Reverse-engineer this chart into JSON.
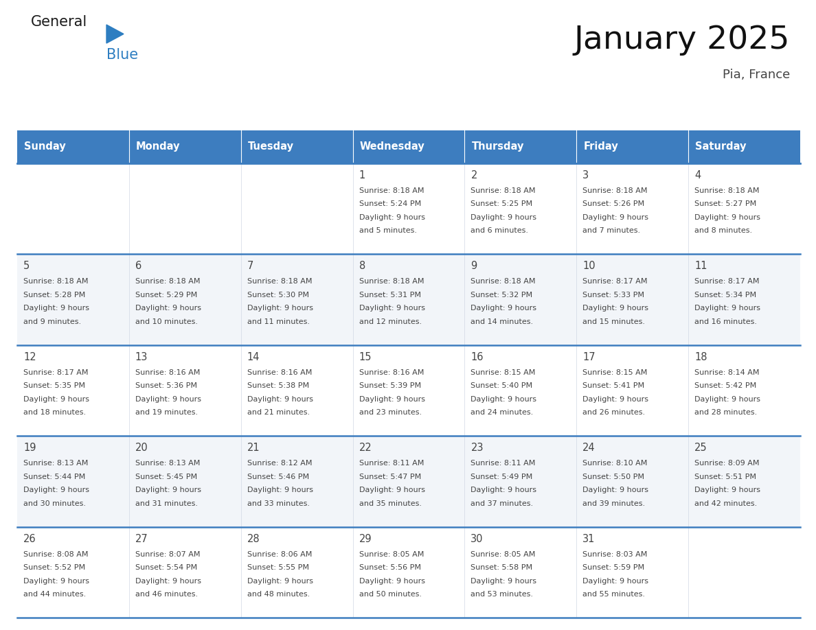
{
  "title": "January 2025",
  "subtitle": "Pia, France",
  "days_of_week": [
    "Sunday",
    "Monday",
    "Tuesday",
    "Wednesday",
    "Thursday",
    "Friday",
    "Saturday"
  ],
  "header_bg": "#3D7DBF",
  "header_text_color": "#FFFFFF",
  "border_color": "#3D7DBF",
  "text_color": "#444444",
  "title_color": "#111111",
  "subtitle_color": "#444444",
  "cell_bg_odd": "#FFFFFF",
  "cell_bg_even": "#F2F5F9",
  "logo_general_color": "#1A1A1A",
  "logo_blue_color": "#2E7EC1",
  "calendar": [
    [
      null,
      null,
      null,
      {
        "day": 1,
        "sunrise": "8:18 AM",
        "sunset": "5:24 PM",
        "daylight": "9 hours",
        "dl_min": "5 minutes"
      },
      {
        "day": 2,
        "sunrise": "8:18 AM",
        "sunset": "5:25 PM",
        "daylight": "9 hours",
        "dl_min": "6 minutes"
      },
      {
        "day": 3,
        "sunrise": "8:18 AM",
        "sunset": "5:26 PM",
        "daylight": "9 hours",
        "dl_min": "7 minutes"
      },
      {
        "day": 4,
        "sunrise": "8:18 AM",
        "sunset": "5:27 PM",
        "daylight": "9 hours",
        "dl_min": "8 minutes"
      }
    ],
    [
      {
        "day": 5,
        "sunrise": "8:18 AM",
        "sunset": "5:28 PM",
        "daylight": "9 hours",
        "dl_min": "9 minutes"
      },
      {
        "day": 6,
        "sunrise": "8:18 AM",
        "sunset": "5:29 PM",
        "daylight": "9 hours",
        "dl_min": "10 minutes"
      },
      {
        "day": 7,
        "sunrise": "8:18 AM",
        "sunset": "5:30 PM",
        "daylight": "9 hours",
        "dl_min": "11 minutes"
      },
      {
        "day": 8,
        "sunrise": "8:18 AM",
        "sunset": "5:31 PM",
        "daylight": "9 hours",
        "dl_min": "12 minutes"
      },
      {
        "day": 9,
        "sunrise": "8:18 AM",
        "sunset": "5:32 PM",
        "daylight": "9 hours",
        "dl_min": "14 minutes"
      },
      {
        "day": 10,
        "sunrise": "8:17 AM",
        "sunset": "5:33 PM",
        "daylight": "9 hours",
        "dl_min": "15 minutes"
      },
      {
        "day": 11,
        "sunrise": "8:17 AM",
        "sunset": "5:34 PM",
        "daylight": "9 hours",
        "dl_min": "16 minutes"
      }
    ],
    [
      {
        "day": 12,
        "sunrise": "8:17 AM",
        "sunset": "5:35 PM",
        "daylight": "9 hours",
        "dl_min": "18 minutes"
      },
      {
        "day": 13,
        "sunrise": "8:16 AM",
        "sunset": "5:36 PM",
        "daylight": "9 hours",
        "dl_min": "19 minutes"
      },
      {
        "day": 14,
        "sunrise": "8:16 AM",
        "sunset": "5:38 PM",
        "daylight": "9 hours",
        "dl_min": "21 minutes"
      },
      {
        "day": 15,
        "sunrise": "8:16 AM",
        "sunset": "5:39 PM",
        "daylight": "9 hours",
        "dl_min": "23 minutes"
      },
      {
        "day": 16,
        "sunrise": "8:15 AM",
        "sunset": "5:40 PM",
        "daylight": "9 hours",
        "dl_min": "24 minutes"
      },
      {
        "day": 17,
        "sunrise": "8:15 AM",
        "sunset": "5:41 PM",
        "daylight": "9 hours",
        "dl_min": "26 minutes"
      },
      {
        "day": 18,
        "sunrise": "8:14 AM",
        "sunset": "5:42 PM",
        "daylight": "9 hours",
        "dl_min": "28 minutes"
      }
    ],
    [
      {
        "day": 19,
        "sunrise": "8:13 AM",
        "sunset": "5:44 PM",
        "daylight": "9 hours",
        "dl_min": "30 minutes"
      },
      {
        "day": 20,
        "sunrise": "8:13 AM",
        "sunset": "5:45 PM",
        "daylight": "9 hours",
        "dl_min": "31 minutes"
      },
      {
        "day": 21,
        "sunrise": "8:12 AM",
        "sunset": "5:46 PM",
        "daylight": "9 hours",
        "dl_min": "33 minutes"
      },
      {
        "day": 22,
        "sunrise": "8:11 AM",
        "sunset": "5:47 PM",
        "daylight": "9 hours",
        "dl_min": "35 minutes"
      },
      {
        "day": 23,
        "sunrise": "8:11 AM",
        "sunset": "5:49 PM",
        "daylight": "9 hours",
        "dl_min": "37 minutes"
      },
      {
        "day": 24,
        "sunrise": "8:10 AM",
        "sunset": "5:50 PM",
        "daylight": "9 hours",
        "dl_min": "39 minutes"
      },
      {
        "day": 25,
        "sunrise": "8:09 AM",
        "sunset": "5:51 PM",
        "daylight": "9 hours",
        "dl_min": "42 minutes"
      }
    ],
    [
      {
        "day": 26,
        "sunrise": "8:08 AM",
        "sunset": "5:52 PM",
        "daylight": "9 hours",
        "dl_min": "44 minutes"
      },
      {
        "day": 27,
        "sunrise": "8:07 AM",
        "sunset": "5:54 PM",
        "daylight": "9 hours",
        "dl_min": "46 minutes"
      },
      {
        "day": 28,
        "sunrise": "8:06 AM",
        "sunset": "5:55 PM",
        "daylight": "9 hours",
        "dl_min": "48 minutes"
      },
      {
        "day": 29,
        "sunrise": "8:05 AM",
        "sunset": "5:56 PM",
        "daylight": "9 hours",
        "dl_min": "50 minutes"
      },
      {
        "day": 30,
        "sunrise": "8:05 AM",
        "sunset": "5:58 PM",
        "daylight": "9 hours",
        "dl_min": "53 minutes"
      },
      {
        "day": 31,
        "sunrise": "8:03 AM",
        "sunset": "5:59 PM",
        "daylight": "9 hours",
        "dl_min": "55 minutes"
      },
      null
    ]
  ]
}
